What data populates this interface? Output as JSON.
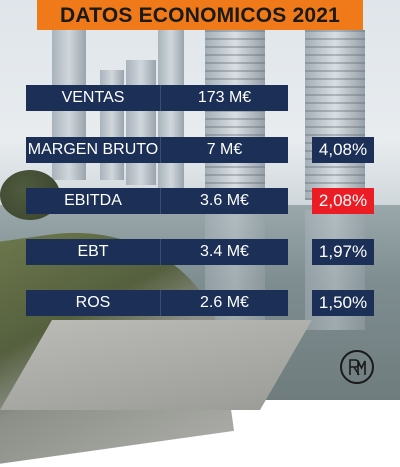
{
  "title": "DATOS ECONOMICOS 2021",
  "colors": {
    "title_bar": "#f07a1a",
    "cell": "#1b2f57",
    "highlight": "#ec1c24",
    "text": "#ffffff"
  },
  "rows": [
    {
      "label": "VENTAS",
      "value": "173 M€",
      "pct": ""
    },
    {
      "label": "MARGEN BRUTO",
      "value": "7 M€",
      "pct": "4,08%"
    },
    {
      "label": "EBITDA",
      "value": "3.6 M€",
      "pct": "2,08%"
    },
    {
      "label": "EBT",
      "value": "3.4 M€",
      "pct": "1,97%"
    },
    {
      "label": "ROS",
      "value": "2.6 M€",
      "pct": "1,50%"
    }
  ],
  "logo": {
    "icon": "monogram-logo-icon",
    "text": "RM"
  }
}
